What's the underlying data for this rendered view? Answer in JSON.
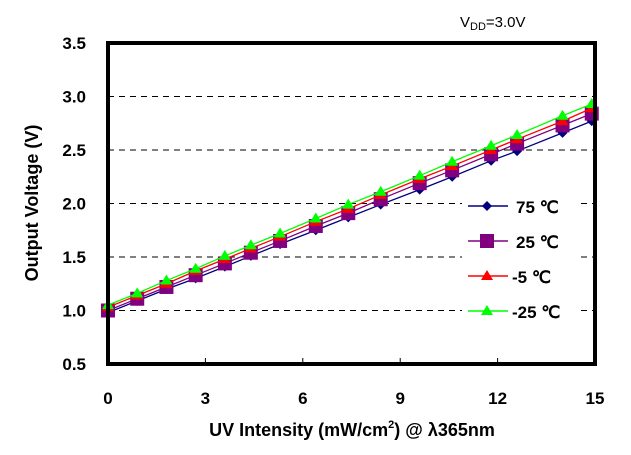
{
  "annotation": {
    "main": "V",
    "sub": "DD",
    "rest": "=3.0V"
  },
  "chart_data": {
    "type": "line",
    "title": "",
    "xlabel": "UV Intensity (mW/cm²) @ λ365nm",
    "xlabel_parts": {
      "pre": "UV Intensity (mW/cm",
      "sup": "2",
      "post": ") @ λ365nm"
    },
    "ylabel": "Output Voltage (V)",
    "xlim": [
      0,
      15
    ],
    "ylim": [
      0.5,
      3.5
    ],
    "xticks": [
      "0",
      "3",
      "6",
      "9",
      "12",
      "15"
    ],
    "yticks": [
      "0.5",
      "1.0",
      "1.5",
      "2.0",
      "2.5",
      "3.0",
      "3.5"
    ],
    "grid": "horizontal dashed",
    "legend_position": "right-middle",
    "x": [
      0,
      0.9,
      1.8,
      2.7,
      3.6,
      4.4,
      5.3,
      6.4,
      7.4,
      8.4,
      9.6,
      10.6,
      11.8,
      12.6,
      14.0,
      14.9
    ],
    "series": [
      {
        "name": "75 ℃",
        "color": "#000080",
        "marker": "diamond",
        "values": [
          0.98,
          1.09,
          1.2,
          1.3,
          1.41,
          1.51,
          1.62,
          1.75,
          1.87,
          1.99,
          2.13,
          2.25,
          2.4,
          2.49,
          2.66,
          2.77
        ]
      },
      {
        "name": "25 ℃",
        "color": "#800080",
        "marker": "square",
        "values": [
          1.0,
          1.11,
          1.22,
          1.33,
          1.44,
          1.54,
          1.65,
          1.79,
          1.91,
          2.04,
          2.19,
          2.31,
          2.46,
          2.56,
          2.73,
          2.84
        ]
      },
      {
        "name": "-5 ℃",
        "color": "#FF0000",
        "marker": "triangle",
        "values": [
          1.03,
          1.14,
          1.25,
          1.37,
          1.48,
          1.58,
          1.69,
          1.83,
          1.95,
          2.08,
          2.23,
          2.35,
          2.5,
          2.6,
          2.77,
          2.89
        ]
      },
      {
        "name": "-25 ℃",
        "color": "#00FF00",
        "marker": "triangle",
        "values": [
          1.05,
          1.16,
          1.28,
          1.39,
          1.51,
          1.61,
          1.72,
          1.86,
          1.99,
          2.11,
          2.26,
          2.39,
          2.54,
          2.64,
          2.82,
          2.93
        ]
      }
    ]
  }
}
